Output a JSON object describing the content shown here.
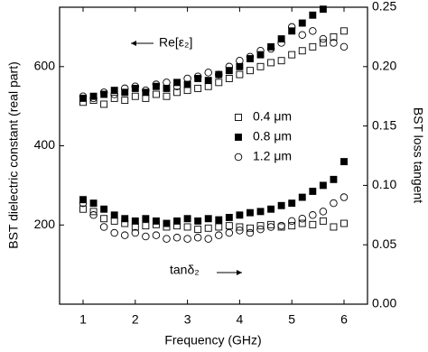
{
  "chart_data": {
    "type": "scatter",
    "x_label": "Frequency (GHz)",
    "y_label": "BST dielectric constant (real part)",
    "y2_label": "BST loss tangent",
    "annotations": [
      "Re[ε₂]",
      "tanδ₂"
    ],
    "x": [
      1,
      1.2,
      1.4,
      1.6,
      1.8,
      2,
      2.2,
      2.4,
      2.6,
      2.8,
      3,
      3.2,
      3.4,
      3.6,
      3.8,
      4,
      4.2,
      4.4,
      4.6,
      4.8,
      5,
      5.2,
      5.4,
      5.6,
      5.8,
      6
    ],
    "xlim": [
      0.55,
      6.45
    ],
    "xticks": [
      1,
      2,
      3,
      4,
      5,
      6
    ],
    "ylim": [
      0,
      750
    ],
    "yticks": [
      200,
      400,
      600
    ],
    "y2lim": [
      0,
      0.25
    ],
    "y2ticks": [
      {
        "value": 0,
        "label": "0.00"
      },
      0.05,
      {
        "value": 0.1,
        "label": "0.10"
      },
      0.15,
      {
        "value": 0.2,
        "label": "0.20"
      },
      0.25
    ],
    "series": [
      {
        "name": "0.4 μm",
        "marker": "square-open",
        "color": "#000000",
        "values": [
          510,
          515,
          505,
          520,
          515,
          525,
          520,
          530,
          525,
          535,
          540,
          545,
          550,
          560,
          570,
          580,
          590,
          600,
          610,
          615,
          630,
          640,
          650,
          660,
          675,
          690
        ]
      },
      {
        "name": "0.8 μm",
        "marker": "square-filled",
        "color": "#000000",
        "values": [
          520,
          525,
          530,
          540,
          535,
          545,
          535,
          550,
          545,
          560,
          555,
          570,
          565,
          580,
          590,
          600,
          620,
          630,
          650,
          670,
          690,
          710,
          730,
          745,
          null,
          null
        ]
      },
      {
        "name": "1.2 μm",
        "marker": "circle-open",
        "color": "#000000",
        "values": [
          525,
          520,
          535,
          530,
          545,
          550,
          540,
          555,
          560,
          550,
          570,
          575,
          585,
          580,
          600,
          615,
          625,
          640,
          645,
          660,
          700,
          680,
          690,
          670,
          660,
          650
        ]
      },
      {
        "marker": "square-open",
        "color": "#000000",
        "axis": "y2",
        "values": [
          0.08,
          0.078,
          0.072,
          0.07,
          0.068,
          0.065,
          0.066,
          0.067,
          0.065,
          0.066,
          0.065,
          0.063,
          0.064,
          0.065,
          0.066,
          0.065,
          0.064,
          0.066,
          0.067,
          0.065,
          0.066,
          0.068,
          0.067,
          0.07,
          0.065,
          0.068
        ]
      },
      {
        "marker": "square-filled",
        "color": "#000000",
        "axis": "y2",
        "values": [
          0.088,
          0.085,
          0.08,
          0.075,
          0.072,
          0.07,
          0.072,
          0.07,
          0.068,
          0.07,
          0.072,
          0.07,
          0.072,
          0.071,
          0.073,
          0.075,
          0.077,
          0.078,
          0.08,
          0.083,
          0.085,
          0.09,
          0.095,
          0.1,
          0.105,
          0.12
        ]
      },
      {
        "marker": "circle-open",
        "color": "#000000",
        "axis": "y2",
        "values": [
          0.085,
          0.075,
          0.065,
          0.06,
          0.058,
          0.06,
          0.057,
          0.058,
          0.055,
          0.056,
          0.055,
          0.056,
          0.055,
          0.058,
          0.06,
          0.062,
          0.06,
          0.063,
          0.065,
          0.066,
          0.07,
          0.072,
          0.075,
          0.078,
          0.085,
          0.09
        ]
      }
    ]
  }
}
